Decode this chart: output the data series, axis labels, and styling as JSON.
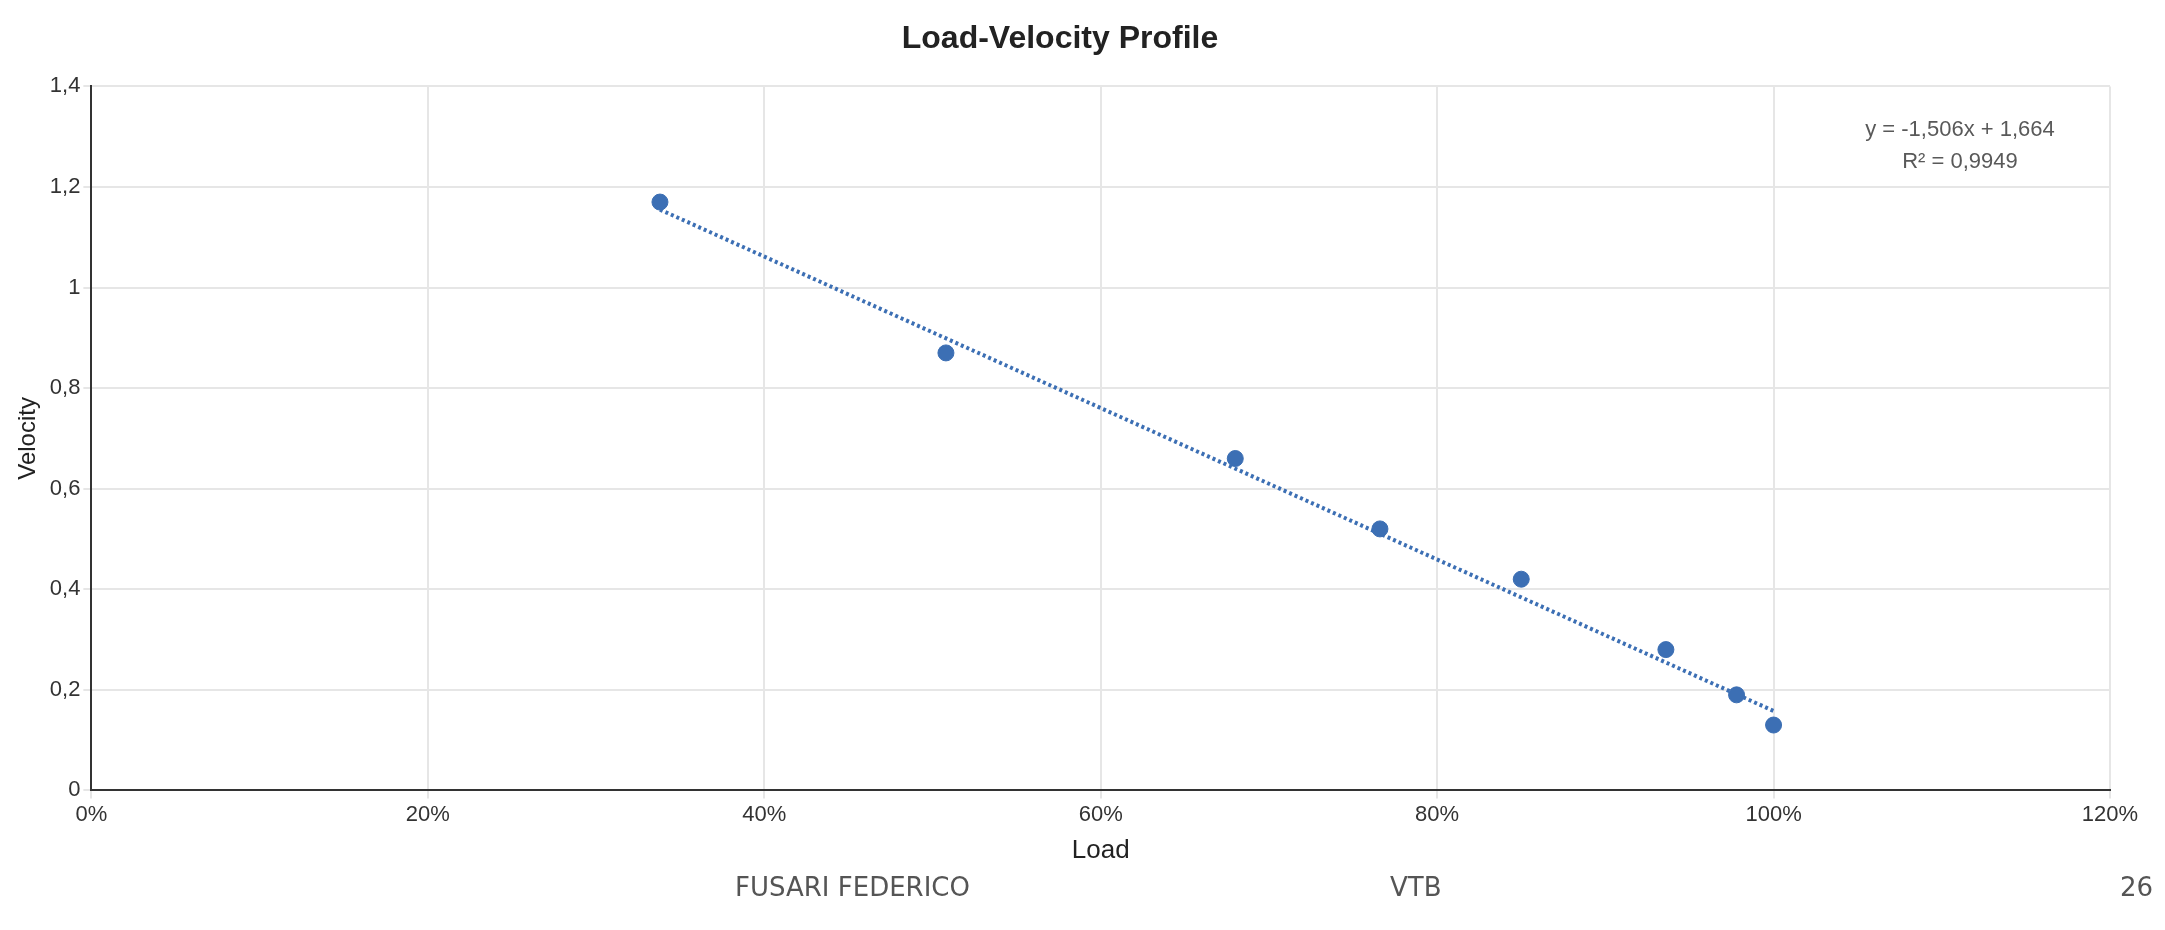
{
  "chart_data": {
    "type": "scatter",
    "title": "Load-Velocity Profile",
    "xlabel": "Load",
    "ylabel": "Velocity",
    "xlim": [
      0,
      1.2
    ],
    "xticks": [
      {
        "value": 0,
        "label": "0%"
      },
      {
        "value": 0.2,
        "label": "20%"
      },
      {
        "value": 0.4,
        "label": "40%"
      },
      {
        "value": 0.6,
        "label": "60%"
      },
      {
        "value": 0.8,
        "label": "80%"
      },
      {
        "value": 1,
        "label": "100%"
      },
      {
        "value": 1.2,
        "label": "120%"
      }
    ],
    "ylim": [
      0,
      1.4
    ],
    "yticks": [
      0,
      {
        "value": 0.2,
        "label": "0,2"
      },
      {
        "value": 0.4,
        "label": "0,4"
      },
      {
        "value": 0.6,
        "label": "0,6"
      },
      {
        "value": 0.8,
        "label": "0,8"
      },
      1,
      {
        "value": 1.2,
        "label": "1,2"
      },
      {
        "value": 1.4,
        "label": "1,4"
      }
    ],
    "grid": true,
    "legend": false,
    "marker": "circle",
    "series": [
      {
        "color": "#3c6fb4",
        "x": [
          0.338,
          0.508,
          0.68,
          0.766,
          0.85,
          0.936,
          0.978,
          1.0
        ],
        "values": [
          1.17,
          0.87,
          0.66,
          0.52,
          0.42,
          0.28,
          0.19,
          0.13
        ]
      },
      {
        "type": "line",
        "color": "#3c6fb4",
        "line_style": "dotted",
        "marker": "none",
        "x": [
          0.338,
          1.0
        ],
        "values": [
          1.155,
          0.158
        ]
      }
    ],
    "annotations": [
      "y = -1,506x + 1,664",
      "R² = 0,9949",
      "FUSARI FEDERICO",
      "VTB",
      "26"
    ]
  }
}
